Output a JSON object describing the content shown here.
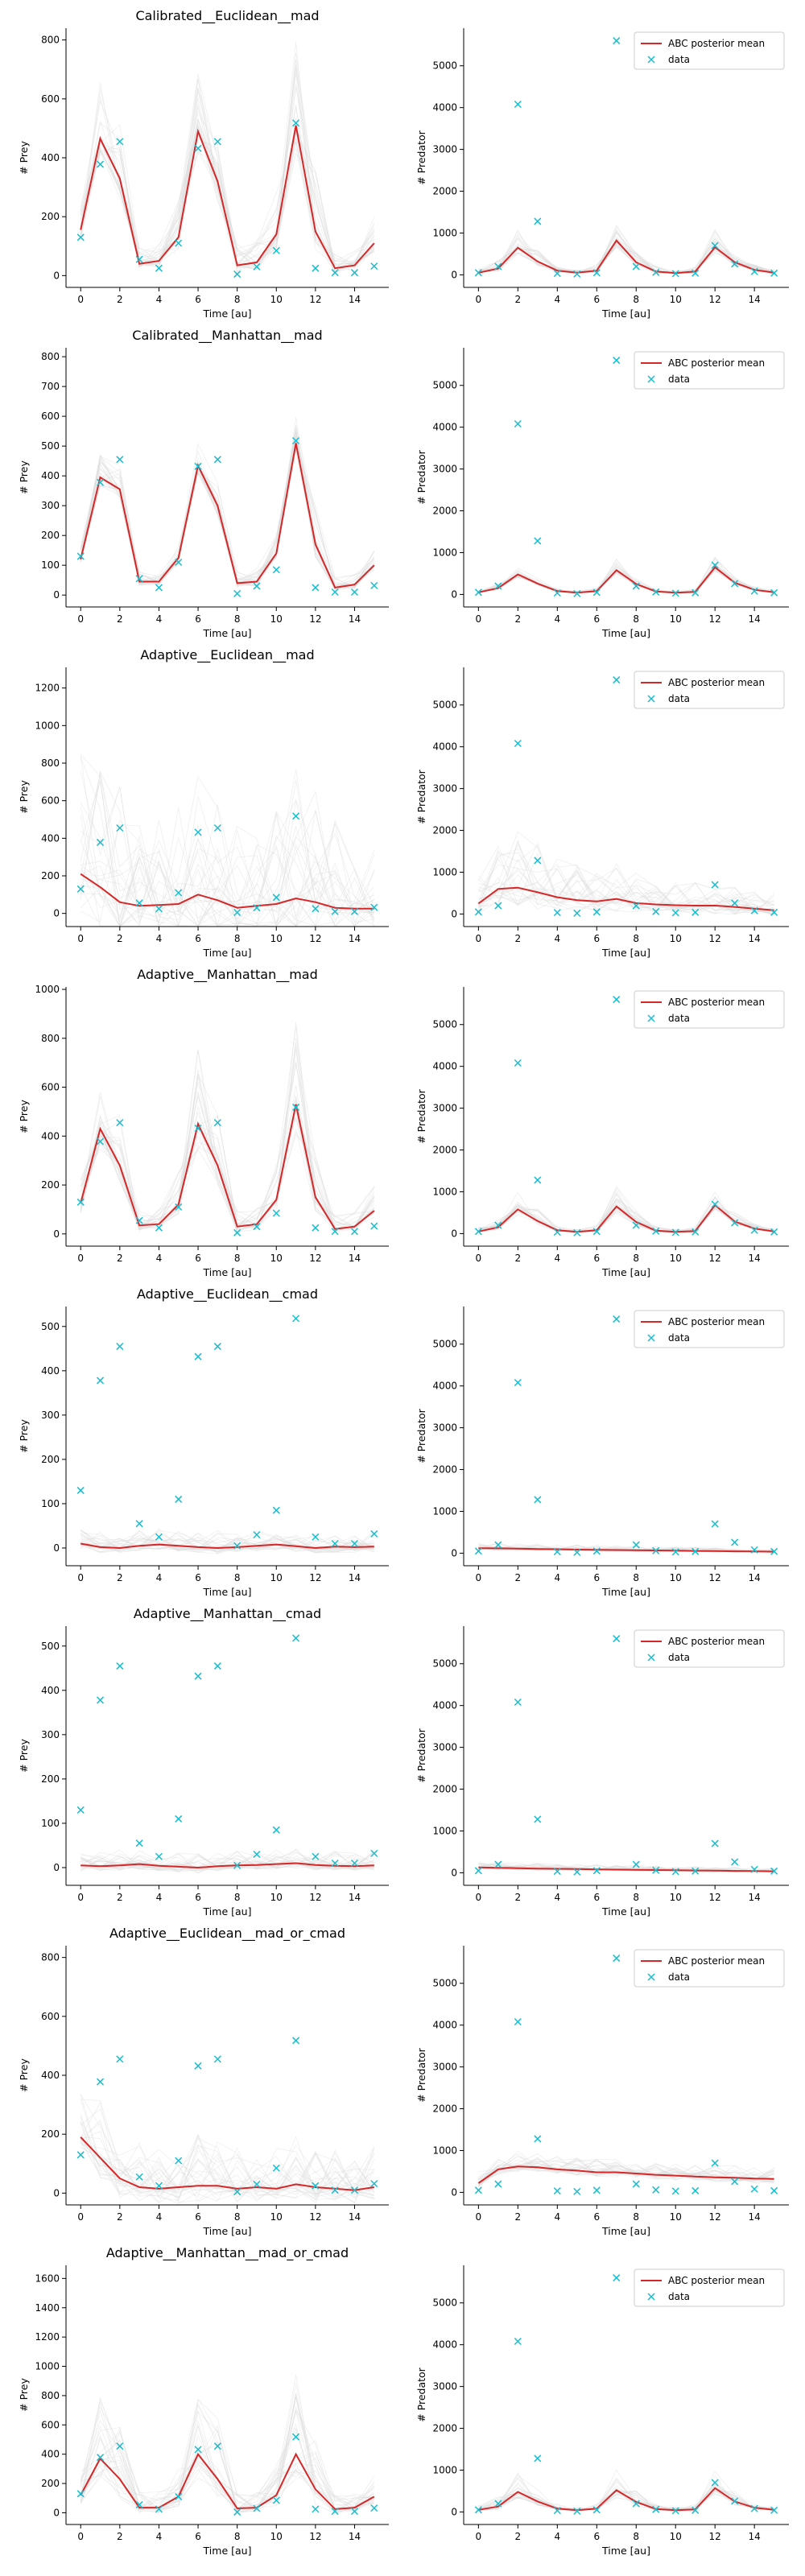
{
  "figure": {
    "common": {
      "x": [
        0,
        1,
        2,
        3,
        4,
        5,
        6,
        7,
        8,
        9,
        10,
        11,
        12,
        13,
        14,
        15
      ],
      "xticks": [
        0,
        2,
        4,
        6,
        8,
        10,
        12,
        14
      ],
      "xlim": [
        -0.75,
        15.75
      ],
      "xlabel": "Time [au]",
      "ylabel_prey": "# Prey",
      "ylabel_pred": "# Predator",
      "legend_mean": "ABC posterior mean",
      "legend_data": "data",
      "data_prey": [
        130,
        378,
        455,
        55,
        25,
        110,
        432,
        455,
        5,
        30,
        85,
        518,
        25,
        10,
        10,
        32
      ],
      "data_pred": [
        50,
        200,
        4080,
        1280,
        35,
        20,
        50,
        5600,
        200,
        60,
        30,
        40,
        700,
        260,
        80,
        40
      ],
      "colors": {
        "mean": "#d62728",
        "data": "#17becf",
        "traj": "#bdbdbd"
      }
    },
    "rows": [
      {
        "title": "Calibrated__Euclidean__mad",
        "prey": {
          "ylim": [
            -40,
            840
          ],
          "yticks": [
            0,
            200,
            400,
            600,
            800
          ],
          "mean": [
            155,
            465,
            330,
            40,
            50,
            130,
            490,
            320,
            35,
            45,
            140,
            510,
            150,
            25,
            35,
            110
          ],
          "band_hi": [
            250,
            680,
            520,
            100,
            110,
            260,
            700,
            520,
            110,
            120,
            290,
            830,
            360,
            80,
            90,
            200
          ]
        },
        "pred": {
          "ylim": [
            -300,
            5900
          ],
          "yticks": [
            0,
            1000,
            2000,
            3000,
            4000,
            5000
          ],
          "mean": [
            50,
            150,
            650,
            320,
            100,
            50,
            100,
            820,
            300,
            80,
            40,
            80,
            660,
            300,
            120,
            50
          ],
          "band_hi": [
            150,
            350,
            1100,
            650,
            200,
            120,
            250,
            1300,
            600,
            200,
            100,
            200,
            1100,
            550,
            250,
            120
          ]
        }
      },
      {
        "title": "Calibrated__Manhattan__mad",
        "prey": {
          "ylim": [
            -40,
            830
          ],
          "yticks": [
            0,
            100,
            200,
            300,
            400,
            500,
            600,
            700,
            800
          ],
          "mean": [
            120,
            395,
            355,
            45,
            45,
            125,
            435,
            300,
            40,
            45,
            140,
            510,
            170,
            25,
            35,
            100
          ],
          "band_hi": [
            160,
            480,
            440,
            80,
            80,
            170,
            520,
            390,
            80,
            90,
            200,
            600,
            300,
            60,
            70,
            150
          ]
        },
        "pred": {
          "ylim": [
            -300,
            5900
          ],
          "yticks": [
            0,
            1000,
            2000,
            3000,
            4000,
            5000
          ],
          "mean": [
            50,
            150,
            480,
            260,
            80,
            40,
            80,
            580,
            250,
            70,
            40,
            60,
            650,
            280,
            110,
            50
          ],
          "band_hi": [
            100,
            250,
            700,
            400,
            150,
            80,
            150,
            850,
            400,
            120,
            80,
            120,
            900,
            420,
            180,
            90
          ]
        }
      },
      {
        "title": "Adaptive__Euclidean__mad",
        "prey": {
          "ylim": [
            -70,
            1310
          ],
          "yticks": [
            0,
            200,
            400,
            600,
            800,
            1000,
            1200
          ],
          "mean": [
            210,
            140,
            60,
            40,
            45,
            50,
            100,
            70,
            30,
            40,
            50,
            80,
            60,
            30,
            25,
            25
          ],
          "band_hi": [
            900,
            800,
            700,
            500,
            500,
            600,
            800,
            700,
            500,
            500,
            600,
            800,
            700,
            500,
            400,
            400
          ]
        },
        "pred": {
          "ylim": [
            -300,
            5900
          ],
          "yticks": [
            0,
            1000,
            2000,
            3000,
            4000,
            5000
          ],
          "mean": [
            250,
            600,
            630,
            520,
            400,
            330,
            300,
            360,
            260,
            230,
            210,
            200,
            200,
            170,
            130,
            90
          ],
          "band_hi": [
            1000,
            1800,
            2000,
            1700,
            1400,
            1200,
            1100,
            1300,
            1000,
            900,
            800,
            800,
            800,
            700,
            600,
            500
          ]
        }
      },
      {
        "title": "Adaptive__Manhattan__mad",
        "prey": {
          "ylim": [
            -50,
            1010
          ],
          "yticks": [
            0,
            200,
            400,
            600,
            800,
            1000
          ],
          "mean": [
            125,
            430,
            280,
            35,
            40,
            120,
            450,
            280,
            30,
            40,
            140,
            530,
            150,
            20,
            30,
            95
          ],
          "band_hi": [
            250,
            700,
            500,
            100,
            100,
            260,
            760,
            500,
            100,
            110,
            300,
            900,
            330,
            80,
            90,
            200
          ]
        },
        "pred": {
          "ylim": [
            -300,
            5900
          ],
          "yticks": [
            0,
            1000,
            2000,
            3000,
            4000,
            5000
          ],
          "mean": [
            50,
            150,
            580,
            300,
            80,
            40,
            80,
            650,
            280,
            70,
            40,
            60,
            680,
            290,
            120,
            50
          ],
          "band_hi": [
            150,
            350,
            1000,
            600,
            180,
            100,
            200,
            1150,
            550,
            180,
            100,
            180,
            1050,
            520,
            230,
            110
          ]
        }
      },
      {
        "title": "Adaptive__Euclidean__cmad",
        "prey": {
          "ylim": [
            -40,
            545
          ],
          "yticks": [
            0,
            100,
            200,
            300,
            400,
            500
          ],
          "mean": [
            10,
            2,
            0,
            5,
            8,
            5,
            2,
            0,
            2,
            5,
            8,
            4,
            0,
            3,
            2,
            3
          ],
          "band_hi": [
            45,
            40,
            35,
            40,
            45,
            40,
            35,
            40,
            35,
            40,
            45,
            40,
            35,
            40,
            35,
            40
          ]
        },
        "pred": {
          "ylim": [
            -300,
            5900
          ],
          "yticks": [
            0,
            1000,
            2000,
            3000,
            4000,
            5000
          ],
          "mean": [
            120,
            115,
            110,
            100,
            95,
            85,
            80,
            75,
            70,
            65,
            60,
            55,
            50,
            45,
            40,
            35
          ],
          "band_hi": [
            250,
            240,
            230,
            220,
            210,
            200,
            190,
            180,
            170,
            160,
            150,
            140,
            130,
            120,
            110,
            100
          ]
        }
      },
      {
        "title": "Adaptive__Manhattan__cmad",
        "prey": {
          "ylim": [
            -40,
            545
          ],
          "yticks": [
            0,
            100,
            200,
            300,
            400,
            500
          ],
          "mean": [
            5,
            3,
            5,
            8,
            4,
            2,
            0,
            3,
            5,
            6,
            8,
            10,
            6,
            4,
            3,
            5
          ],
          "band_hi": [
            40,
            38,
            40,
            42,
            38,
            36,
            35,
            38,
            40,
            40,
            42,
            44,
            40,
            38,
            36,
            38
          ]
        },
        "pred": {
          "ylim": [
            -300,
            5900
          ],
          "yticks": [
            0,
            1000,
            2000,
            3000,
            4000,
            5000
          ],
          "mean": [
            130,
            120,
            110,
            100,
            95,
            90,
            80,
            75,
            70,
            65,
            60,
            55,
            50,
            45,
            40,
            35
          ],
          "band_hi": [
            260,
            250,
            240,
            230,
            220,
            210,
            200,
            190,
            180,
            170,
            160,
            150,
            140,
            130,
            120,
            110
          ]
        }
      },
      {
        "title": "Adaptive__Euclidean__mad_or_cmad",
        "prey": {
          "ylim": [
            -40,
            840
          ],
          "yticks": [
            0,
            200,
            400,
            600,
            800
          ],
          "mean": [
            190,
            120,
            50,
            20,
            15,
            20,
            25,
            25,
            15,
            20,
            15,
            30,
            20,
            15,
            10,
            20
          ],
          "band_hi": [
            350,
            320,
            250,
            180,
            160,
            180,
            200,
            200,
            170,
            160,
            160,
            200,
            170,
            150,
            140,
            160
          ]
        },
        "pred": {
          "ylim": [
            -300,
            5900
          ],
          "yticks": [
            0,
            1000,
            2000,
            3000,
            4000,
            5000
          ],
          "mean": [
            220,
            550,
            620,
            600,
            550,
            520,
            480,
            480,
            450,
            420,
            400,
            380,
            360,
            350,
            330,
            320
          ],
          "band_hi": [
            500,
            900,
            1000,
            950,
            900,
            850,
            800,
            800,
            750,
            720,
            700,
            680,
            650,
            640,
            620,
            600
          ]
        }
      },
      {
        "title": "Adaptive__Manhattan__mad_or_cmad",
        "prey": {
          "ylim": [
            -80,
            1690
          ],
          "yticks": [
            0,
            200,
            400,
            600,
            800,
            1000,
            1200,
            1400,
            1600
          ],
          "mean": [
            120,
            370,
            230,
            35,
            35,
            110,
            400,
            230,
            30,
            35,
            120,
            400,
            160,
            25,
            35,
            110
          ],
          "band_hi": [
            300,
            800,
            600,
            150,
            150,
            300,
            900,
            650,
            150,
            150,
            330,
            950,
            500,
            120,
            130,
            280
          ]
        },
        "pred": {
          "ylim": [
            -300,
            5900
          ],
          "yticks": [
            0,
            1000,
            2000,
            3000,
            4000,
            5000
          ],
          "mean": [
            50,
            130,
            480,
            250,
            80,
            40,
            80,
            520,
            240,
            70,
            40,
            60,
            570,
            250,
            100,
            50
          ],
          "band_hi": [
            150,
            350,
            950,
            600,
            200,
            120,
            220,
            1050,
            550,
            200,
            110,
            190,
            1000,
            500,
            230,
            120
          ]
        }
      }
    ]
  }
}
